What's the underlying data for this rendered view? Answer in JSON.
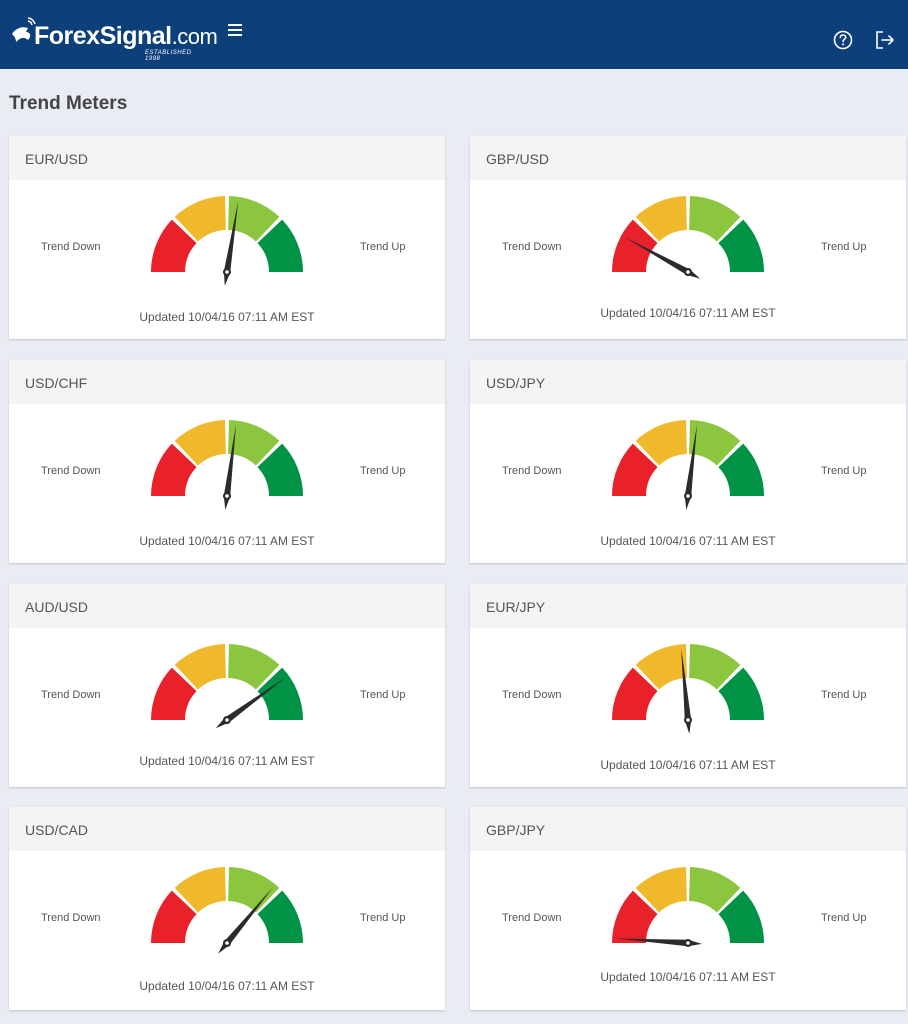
{
  "header": {
    "brand_name": "ForexSignal",
    "brand_suffix": ".com",
    "brand_tagline": "ESTABLISHED 1998",
    "menu_icon": "hamburger-icon",
    "help_icon": "question-circle-icon",
    "logout_icon": "logout-icon",
    "background_color": "#0d3f7a"
  },
  "page": {
    "title": "Trend Meters"
  },
  "gauge_colors": [
    "#e8212a",
    "#f0b92c",
    "#8cc63f",
    "#009245"
  ],
  "labels": {
    "trend_down": "Trend Down",
    "trend_up": "Trend Up"
  },
  "meters": [
    {
      "pair": "EUR/USD",
      "level": 0.55,
      "updated": "Updated 10/04/16 07:11 AM EST"
    },
    {
      "pair": "GBP/USD",
      "level": 0.16,
      "updated": "Updated 10/04/16 07:11 AM EST"
    },
    {
      "pair": "USD/CHF",
      "level": 0.54,
      "updated": "Updated 10/04/16 07:11 AM EST"
    },
    {
      "pair": "USD/JPY",
      "level": 0.54,
      "updated": "Updated 10/04/16 07:11 AM EST"
    },
    {
      "pair": "AUD/USD",
      "level": 0.8,
      "updated": "Updated 10/04/16 07:11 AM EST"
    },
    {
      "pair": "EUR/JPY",
      "level": 0.47,
      "updated": "Updated 10/04/16 07:11 AM EST"
    },
    {
      "pair": "USD/CAD",
      "level": 0.72,
      "updated": "Updated 10/04/16 07:11 AM EST"
    },
    {
      "pair": "GBP/JPY",
      "level": 0.02,
      "updated": "Updated 10/04/16 07:11 AM EST"
    }
  ]
}
